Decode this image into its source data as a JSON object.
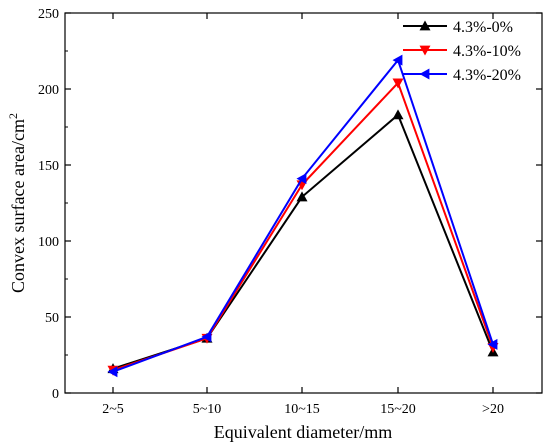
{
  "chart_data": {
    "type": "line",
    "categories": [
      "2~5",
      "5~10",
      "10~15",
      "15~20",
      ">20"
    ],
    "xlabel": "Equivalent diameter/mm",
    "ylabel_main": "Convex surface area/cm",
    "ylabel_sup": "2",
    "ylim": [
      0,
      250
    ],
    "yticks": [
      "0",
      "50",
      "100",
      "150",
      "200",
      "250"
    ],
    "grid": false,
    "legend_placement": "top-right",
    "series": [
      {
        "name": "4.3%-0%",
        "color": "#000000",
        "marker": "triangle-up",
        "values": [
          16,
          36,
          129,
          183,
          27
        ]
      },
      {
        "name": "4.3%-10%",
        "color": "#ff0000",
        "marker": "triangle-down",
        "values": [
          15,
          36,
          137,
          204,
          30
        ]
      },
      {
        "name": "4.3%-20%",
        "color": "#0000ff",
        "marker": "triangle-left",
        "values": [
          14,
          37,
          141,
          219,
          32
        ]
      }
    ]
  }
}
